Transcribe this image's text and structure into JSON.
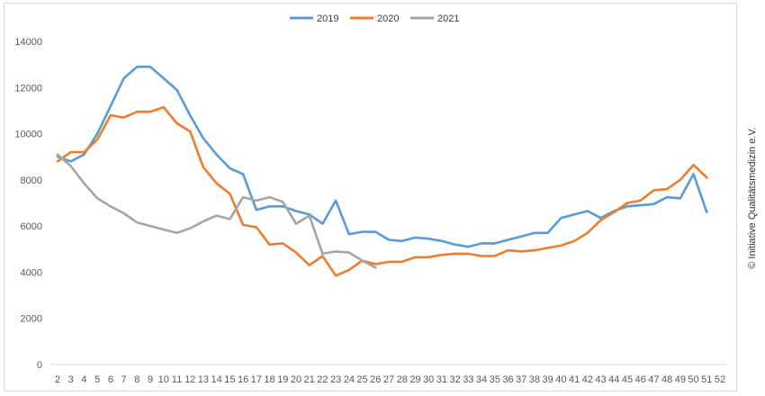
{
  "copyright": "© Initiative Qualitätsmedizin e.V.",
  "chart_data": {
    "type": "line",
    "title": "",
    "xlabel": "",
    "ylabel": "",
    "ylim": [
      0,
      14000
    ],
    "yticks": [
      0,
      2000,
      4000,
      6000,
      8000,
      10000,
      12000,
      14000
    ],
    "grid": false,
    "legend": "top-center",
    "x": [
      "2",
      "3",
      "4",
      "5",
      "6",
      "7",
      "8",
      "9",
      "10",
      "11",
      "12",
      "13",
      "14",
      "15",
      "16",
      "17",
      "18",
      "19",
      "20",
      "21",
      "22",
      "23",
      "24",
      "25",
      "26",
      "27",
      "28",
      "29",
      "30",
      "31",
      "32",
      "33",
      "34",
      "35",
      "36",
      "37",
      "38",
      "39",
      "40",
      "41",
      "42",
      "43",
      "44",
      "45",
      "46",
      "47",
      "48",
      "49",
      "50",
      "51",
      "52"
    ],
    "series": [
      {
        "name": "2019",
        "color": "#5b9bd5",
        "values": [
          9000,
          8800,
          9100,
          10000,
          11200,
          12400,
          12900,
          12900,
          12400,
          11900,
          10800,
          9800,
          9100,
          8500,
          8250,
          6700,
          6850,
          6850,
          6650,
          6500,
          6100,
          7100,
          5650,
          5750,
          5750,
          5400,
          5350,
          5500,
          5450,
          5350,
          5200,
          5100,
          5250,
          5250,
          5400,
          5550,
          5700,
          5700,
          6350,
          6500,
          6650,
          6350,
          6650,
          6850,
          6900,
          6950,
          7250,
          7200,
          8250,
          6600,
          null
        ]
      },
      {
        "name": "2020",
        "color": "#ed7d31",
        "values": [
          8800,
          9200,
          9200,
          9750,
          10800,
          10700,
          10950,
          10950,
          11150,
          10450,
          10100,
          8550,
          7850,
          7400,
          6050,
          5950,
          5200,
          5250,
          4850,
          4300,
          4700,
          3850,
          4100,
          4500,
          4350,
          4450,
          4450,
          4650,
          4650,
          4750,
          4800,
          4800,
          4700,
          4700,
          4950,
          4900,
          4950,
          5050,
          5150,
          5350,
          5700,
          6250,
          6600,
          7000,
          7100,
          7550,
          7600,
          8000,
          8650,
          8100,
          null
        ]
      },
      {
        "name": "2021",
        "color": "#a5a5a5",
        "values": [
          9100,
          8600,
          7850,
          7200,
          6850,
          6550,
          6150,
          6000,
          5850,
          5700,
          5900,
          6200,
          6450,
          6300,
          7250,
          7100,
          7250,
          7050,
          6100,
          6450,
          4800,
          4900,
          4850,
          4500,
          4200,
          null,
          null,
          null,
          null,
          null,
          null,
          null,
          null,
          null,
          null,
          null,
          null,
          null,
          null,
          null,
          null,
          null,
          null,
          null,
          null,
          null,
          null,
          null,
          null,
          null,
          null
        ]
      }
    ]
  }
}
